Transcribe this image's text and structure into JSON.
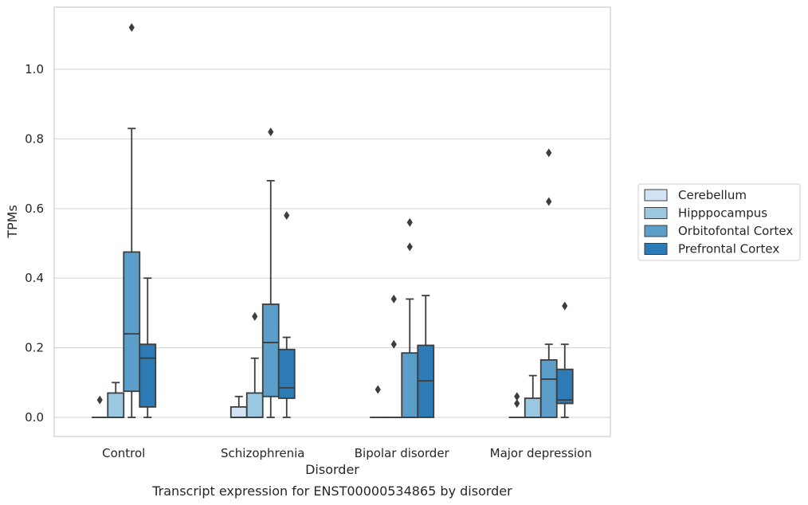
{
  "caption": "Transcript expression for ENST00000534865 by disorder",
  "chart_data": {
    "type": "box",
    "xlabel": "Disorder",
    "ylabel": "TPMs",
    "ylim": [
      -0.055,
      1.17
    ],
    "yticks": [
      0.0,
      0.2,
      0.4,
      0.6,
      0.8,
      1.0
    ],
    "ytick_labels": [
      "0.0",
      "0.2",
      "0.4",
      "0.6",
      "0.8",
      "1.0"
    ],
    "grid": "horizontal",
    "legend_position": "right",
    "categories": [
      "Control",
      "Schizophrenia",
      "Bipolar disorder",
      "Major depression"
    ],
    "series": [
      {
        "name": "Cerebellum",
        "color": "#d1e2f2",
        "boxes": [
          {
            "whislo": 0,
            "q1": 0,
            "med": 0,
            "q3": 0,
            "whishi": 0,
            "fliers": [
              0.05
            ]
          },
          {
            "whislo": 0,
            "q1": 0,
            "med": 0,
            "q3": 0.03,
            "whishi": 0.06,
            "fliers": []
          },
          {
            "whislo": 0,
            "q1": 0,
            "med": 0,
            "q3": 0,
            "whishi": 0,
            "fliers": [
              0.08
            ]
          },
          {
            "whislo": 0,
            "q1": 0,
            "med": 0,
            "q3": 0,
            "whishi": 0,
            "fliers": [
              0.04,
              0.06
            ]
          }
        ]
      },
      {
        "name": "Hipppocampus",
        "color": "#9ac8e0",
        "boxes": [
          {
            "whislo": 0,
            "q1": 0,
            "med": 0,
            "q3": 0.07,
            "whishi": 0.1,
            "fliers": []
          },
          {
            "whislo": 0,
            "q1": 0,
            "med": 0,
            "q3": 0.07,
            "whishi": 0.17,
            "fliers": [
              0.29
            ]
          },
          {
            "whislo": 0,
            "q1": 0,
            "med": 0,
            "q3": 0,
            "whishi": 0,
            "fliers": [
              0.21,
              0.34
            ]
          },
          {
            "whislo": 0,
            "q1": 0,
            "med": 0,
            "q3": 0.055,
            "whishi": 0.12,
            "fliers": []
          }
        ]
      },
      {
        "name": "Orbitofontal Cortex",
        "color": "#5a9ec9",
        "boxes": [
          {
            "whislo": 0,
            "q1": 0.075,
            "med": 0.24,
            "q3": 0.475,
            "whishi": 0.83,
            "fliers": [
              1.12
            ]
          },
          {
            "whislo": 0,
            "q1": 0.06,
            "med": 0.215,
            "q3": 0.325,
            "whishi": 0.68,
            "fliers": [
              0.82
            ]
          },
          {
            "whislo": 0,
            "q1": 0,
            "med": 0,
            "q3": 0.185,
            "whishi": 0.34,
            "fliers": [
              0.49,
              0.56
            ]
          },
          {
            "whislo": 0,
            "q1": 0,
            "med": 0.11,
            "q3": 0.165,
            "whishi": 0.21,
            "fliers": [
              0.62,
              0.76
            ]
          }
        ]
      },
      {
        "name": "Prefrontal Cortex",
        "color": "#2c7bb6",
        "boxes": [
          {
            "whislo": 0,
            "q1": 0.03,
            "med": 0.17,
            "q3": 0.21,
            "whishi": 0.4,
            "fliers": []
          },
          {
            "whislo": 0,
            "q1": 0.055,
            "med": 0.085,
            "q3": 0.195,
            "whishi": 0.23,
            "fliers": [
              0.58
            ]
          },
          {
            "whislo": 0,
            "q1": 0,
            "med": 0.105,
            "q3": 0.207,
            "whishi": 0.35,
            "fliers": []
          },
          {
            "whislo": 0,
            "q1": 0.04,
            "med": 0.05,
            "q3": 0.138,
            "whishi": 0.21,
            "fliers": [
              0.32
            ]
          }
        ]
      }
    ]
  }
}
